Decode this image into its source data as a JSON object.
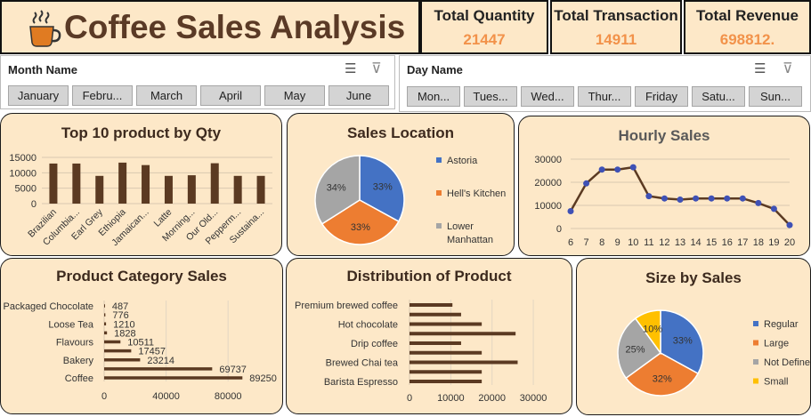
{
  "header": {
    "title": "Coffee Sales Analysis",
    "icon": "coffee-cup-icon"
  },
  "kpis": [
    {
      "label": "Total Quantity",
      "value": "21447"
    },
    {
      "label": "Total Transaction",
      "value": "14911"
    },
    {
      "label": "Total Revenue",
      "value": "698812."
    }
  ],
  "slicers": {
    "month": {
      "title": "Month Name",
      "items": [
        "January",
        "Febru...",
        "March",
        "April",
        "May",
        "June"
      ]
    },
    "day": {
      "title": "Day Name",
      "items": [
        "Mon...",
        "Tues...",
        "Wed...",
        "Thur...",
        "Friday",
        "Satu...",
        "Sun..."
      ]
    }
  },
  "colors": {
    "panel_bg": "#fde8c8",
    "bar_brown": "#5b3a22",
    "blue": "#4472c4",
    "orange": "#ed7d31",
    "gray": "#a5a5a5",
    "yellow": "#ffc000",
    "kpi_value": "#f2924a"
  },
  "chart_data": [
    {
      "type": "bar",
      "title": "Top 10 product by Qty",
      "categories": [
        "Brazilian",
        "Columbia...",
        "Earl Grey",
        "Ethiopia",
        "Jamaican...",
        "Latte",
        "Morning...",
        "Our Old...",
        "Pepperm...",
        "Sustaina..."
      ],
      "values": [
        13000,
        13000,
        9000,
        13300,
        12500,
        9000,
        9200,
        13100,
        9000,
        9000
      ],
      "yticks": [
        "0",
        "5000",
        "10000",
        "15000"
      ],
      "ylim": [
        0,
        15000
      ]
    },
    {
      "type": "pie",
      "title": "Sales Location",
      "labels": [
        "Astoria",
        "Hell's Kitchen",
        "Lower Manhattan"
      ],
      "values": [
        33,
        33,
        34
      ],
      "slice_labels": [
        "33%",
        "33%",
        "34%"
      ],
      "legend_position": "right"
    },
    {
      "type": "line",
      "title": "Hourly Sales",
      "x": [
        6,
        7,
        8,
        9,
        10,
        11,
        12,
        13,
        14,
        15,
        16,
        17,
        18,
        19,
        20
      ],
      "values": [
        7500,
        19500,
        25500,
        25500,
        26500,
        14000,
        13000,
        12500,
        13000,
        13000,
        13000,
        13000,
        11000,
        8500,
        1500
      ],
      "yticks": [
        "0",
        "10000",
        "20000",
        "30000"
      ],
      "ylim": [
        0,
        30000
      ]
    },
    {
      "type": "bar",
      "title": "Product Category Sales",
      "orientation": "horizontal",
      "categories": [
        "Packaged Chocolate",
        "",
        "Loose Tea",
        "",
        "Flavours",
        "",
        "Bakery",
        "",
        "Coffee"
      ],
      "values": [
        487,
        776,
        1210,
        1828,
        10511,
        17457,
        23214,
        69737,
        89250
      ],
      "data_labels": [
        "487",
        "776",
        "1210",
        "1828",
        "10511",
        "17457",
        "23214",
        "69737",
        "89250"
      ],
      "xticks": [
        "0",
        "40000",
        "80000"
      ],
      "xlim": [
        0,
        100000
      ]
    },
    {
      "type": "bar",
      "title": "Distribution of Product",
      "orientation": "horizontal",
      "categories": [
        "Premium brewed coffee",
        "",
        "Hot chocolate",
        "",
        "Drip coffee",
        "",
        "Brewed Chai tea",
        "",
        "Barista Espresso"
      ],
      "values": [
        10400,
        12500,
        17500,
        25700,
        12500,
        17500,
        26200,
        17500,
        17500
      ],
      "xticks": [
        "0",
        "10000",
        "20000",
        "30000"
      ],
      "xlim": [
        0,
        33000
      ]
    },
    {
      "type": "pie",
      "title": "Size by Sales",
      "labels": [
        "Regular",
        "Large",
        "Not Define",
        "Small"
      ],
      "values": [
        33,
        32,
        25,
        10
      ],
      "slice_labels": [
        "33%",
        "32%",
        "25%",
        "10%"
      ],
      "legend_position": "right"
    }
  ]
}
